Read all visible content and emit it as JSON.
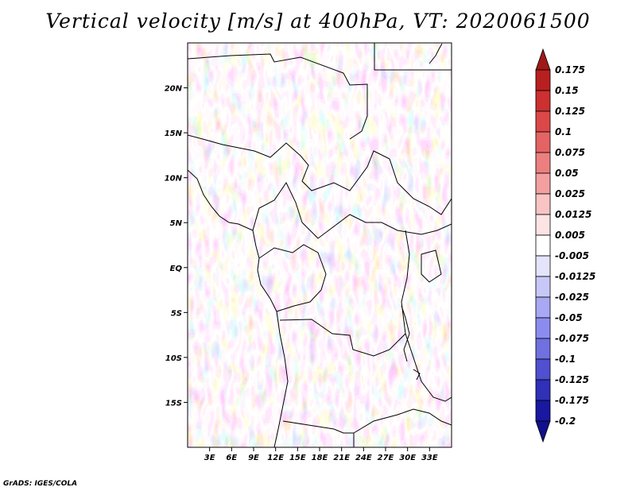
{
  "title": "Vertical velocity [m/s] at 400hPa, VT: 2020061500",
  "footer": "GrADS: IGES/COLA",
  "map": {
    "lon_range": [
      0,
      36
    ],
    "lat_range": [
      -20,
      25
    ],
    "lat_ticks": [
      {
        "value": 20,
        "label": "20N"
      },
      {
        "value": 15,
        "label": "15N"
      },
      {
        "value": 10,
        "label": "10N"
      },
      {
        "value": 5,
        "label": "5N"
      },
      {
        "value": 0,
        "label": "EQ"
      },
      {
        "value": -5,
        "label": "5S"
      },
      {
        "value": -10,
        "label": "10S"
      },
      {
        "value": -15,
        "label": "15S"
      }
    ],
    "lon_ticks": [
      {
        "value": 3,
        "label": "3E"
      },
      {
        "value": 6,
        "label": "6E"
      },
      {
        "value": 9,
        "label": "9E"
      },
      {
        "value": 12,
        "label": "12E"
      },
      {
        "value": 15,
        "label": "15E"
      },
      {
        "value": 18,
        "label": "18E"
      },
      {
        "value": 21,
        "label": "21E"
      },
      {
        "value": 24,
        "label": "24E"
      },
      {
        "value": 27,
        "label": "27E"
      },
      {
        "value": 30,
        "label": "30E"
      },
      {
        "value": 33,
        "label": "33E"
      }
    ]
  },
  "colorbar": {
    "labels": [
      "0.175",
      "0.15",
      "0.125",
      "0.1",
      "0.075",
      "0.05",
      "0.025",
      "0.0125",
      "0.005",
      "-0.005",
      "-0.0125",
      "-0.025",
      "-0.05",
      "-0.075",
      "-0.1",
      "-0.125",
      "-0.175",
      "-0.2"
    ],
    "colors": [
      "#a01818",
      "#b82020",
      "#cc3030",
      "#dc4848",
      "#e46464",
      "#ec8080",
      "#f4a0a0",
      "#f8c4c4",
      "#fce4e4",
      "#ffffff",
      "#e4e4fc",
      "#c8c8f8",
      "#a8a8f4",
      "#8c8cf0",
      "#7070e0",
      "#5050d0",
      "#3030b8",
      "#1818a0",
      "#10108c"
    ]
  }
}
